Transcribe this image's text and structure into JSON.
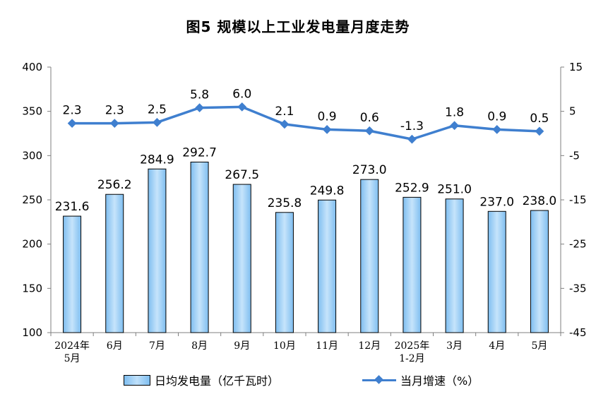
{
  "chart_data": {
    "type": "bar+line",
    "title": "图5  规模以上工业发电量月度走势",
    "categories": [
      [
        "2024年",
        "5月"
      ],
      [
        "6月"
      ],
      [
        "7月"
      ],
      [
        "8月"
      ],
      [
        "9月"
      ],
      [
        "10月"
      ],
      [
        "11月"
      ],
      [
        "12月"
      ],
      [
        "2025年",
        "1-2月"
      ],
      [
        "3月"
      ],
      [
        "4月"
      ],
      [
        "5月"
      ]
    ],
    "series": [
      {
        "name": "日均发电量（亿千瓦时）",
        "type": "bar",
        "axis": "left",
        "color": "#9fd0f6",
        "values": [
          231.6,
          256.2,
          284.9,
          292.7,
          267.5,
          235.8,
          249.8,
          273.0,
          252.9,
          251.0,
          237.0,
          238.0
        ],
        "labels": [
          "231.6",
          "256.2",
          "284.9",
          "292.7",
          "267.5",
          "235.8",
          "249.8",
          "273.0",
          "252.9",
          "251.0",
          "237.0",
          "238.0"
        ]
      },
      {
        "name": "当月增速（%）",
        "type": "line",
        "axis": "right",
        "color": "#3f7fcf",
        "values": [
          2.3,
          2.3,
          2.5,
          5.8,
          6.0,
          2.1,
          0.9,
          0.6,
          -1.3,
          1.8,
          0.9,
          0.5
        ],
        "labels": [
          "2.3",
          "2.3",
          "2.5",
          "5.8",
          "6.0",
          "2.1",
          "0.9",
          "0.6",
          "-1.3",
          "1.8",
          "0.9",
          "0.5"
        ]
      }
    ],
    "y_left": {
      "min": 100,
      "max": 400,
      "ticks": [
        100,
        150,
        200,
        250,
        300,
        350,
        400
      ]
    },
    "y_right": {
      "min": -45,
      "max": 15,
      "ticks": [
        -45,
        -35,
        -25,
        -15,
        -5,
        5,
        15
      ]
    },
    "grid": false,
    "legend_position": "bottom"
  }
}
